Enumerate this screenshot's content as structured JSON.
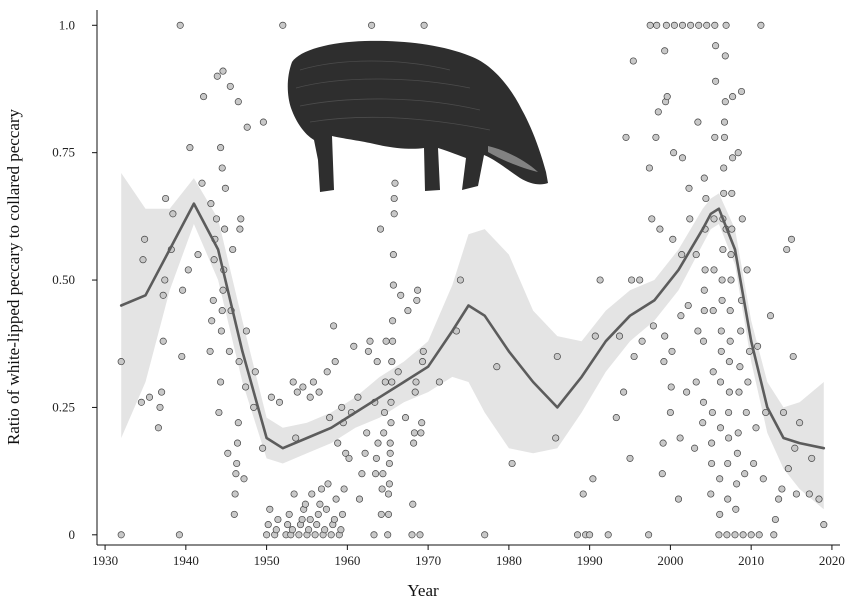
{
  "chart_data": {
    "type": "scatter",
    "title": "",
    "xlabel": "Year",
    "ylabel": "Ratio of white-lipped peccary to collared peccary",
    "xlim": [
      1929,
      2021
    ],
    "ylim": [
      -0.02,
      1.03
    ],
    "x_ticks": [
      1930,
      1940,
      1950,
      1960,
      1970,
      1980,
      1990,
      2000,
      2010,
      2020
    ],
    "y_ticks": [
      0,
      0.25,
      0.5,
      0.75,
      1.0
    ],
    "x_tick_labels": [
      "1930",
      "1940",
      "1950",
      "1960",
      "1970",
      "1980",
      "1990",
      "2000",
      "2010",
      "2020"
    ],
    "y_tick_labels": [
      "0",
      "0.25",
      "0.50",
      "0.75",
      "1.0"
    ],
    "grid": false,
    "legend": "none",
    "colors": {
      "point_fill": "#c8c8c8",
      "point_stroke": "#444444",
      "trend_line": "#5c5c5c",
      "confidence_band": "#e4e4e4",
      "silhouette": "#2e2e2e"
    },
    "illustration": "white-lipped-peccary-silhouette",
    "trend": {
      "x": [
        1932,
        1935,
        1938,
        1941,
        1944,
        1947,
        1950,
        1952,
        1955,
        1958,
        1961,
        1964,
        1967,
        1970,
        1973,
        1975,
        1977,
        1980,
        1983,
        1986,
        1989,
        1992,
        1995,
        1998,
        2001,
        2004,
        2005,
        2006,
        2008,
        2010,
        2012,
        2014,
        2016,
        2019
      ],
      "y": [
        0.45,
        0.47,
        0.56,
        0.65,
        0.56,
        0.36,
        0.19,
        0.17,
        0.19,
        0.21,
        0.24,
        0.27,
        0.3,
        0.33,
        0.4,
        0.45,
        0.43,
        0.36,
        0.3,
        0.25,
        0.31,
        0.38,
        0.43,
        0.46,
        0.52,
        0.6,
        0.63,
        0.64,
        0.56,
        0.38,
        0.25,
        0.19,
        0.18,
        0.17
      ],
      "lower": [
        0.19,
        0.3,
        0.48,
        0.61,
        0.5,
        0.3,
        0.15,
        0.14,
        0.16,
        0.18,
        0.21,
        0.23,
        0.26,
        0.28,
        0.31,
        0.3,
        0.24,
        0.17,
        0.16,
        0.17,
        0.24,
        0.32,
        0.38,
        0.42,
        0.48,
        0.57,
        0.6,
        0.61,
        0.53,
        0.34,
        0.2,
        0.13,
        0.09,
        0.05
      ],
      "upper": [
        0.71,
        0.64,
        0.64,
        0.7,
        0.62,
        0.42,
        0.23,
        0.21,
        0.22,
        0.24,
        0.27,
        0.31,
        0.34,
        0.38,
        0.49,
        0.59,
        0.6,
        0.55,
        0.44,
        0.39,
        0.38,
        0.44,
        0.48,
        0.5,
        0.56,
        0.64,
        0.66,
        0.67,
        0.6,
        0.42,
        0.3,
        0.25,
        0.26,
        0.3
      ]
    },
    "points": [
      [
        1932,
        0
      ],
      [
        1932,
        0.34
      ],
      [
        1934.5,
        0.26
      ],
      [
        1934.7,
        0.54
      ],
      [
        1934.9,
        0.58
      ],
      [
        1935.5,
        0.27
      ],
      [
        1936.6,
        0.21
      ],
      [
        1936.8,
        0.25
      ],
      [
        1937,
        0.28
      ],
      [
        1937.2,
        0.47
      ],
      [
        1937.4,
        0.5
      ],
      [
        1937.5,
        0.66
      ],
      [
        1937.2,
        0.38
      ],
      [
        1938.2,
        0.56
      ],
      [
        1938.4,
        0.63
      ],
      [
        1939.2,
        0
      ],
      [
        1939.3,
        1.0
      ],
      [
        1939.5,
        0.35
      ],
      [
        1939.6,
        0.48
      ],
      [
        1940.3,
        0.52
      ],
      [
        1940.5,
        0.76
      ],
      [
        1941.5,
        0.55
      ],
      [
        1942,
        0.69
      ],
      [
        1942.2,
        0.86
      ],
      [
        1943,
        0.36
      ],
      [
        1943.2,
        0.42
      ],
      [
        1943.4,
        0.46
      ],
      [
        1943.5,
        0.54
      ],
      [
        1943.6,
        0.58
      ],
      [
        1943.8,
        0.62
      ],
      [
        1943.9,
        0.9
      ],
      [
        1943.1,
        0.65
      ],
      [
        1944.1,
        0.24
      ],
      [
        1944.3,
        0.3
      ],
      [
        1944.4,
        0.4
      ],
      [
        1944.5,
        0.44
      ],
      [
        1944.6,
        0.48
      ],
      [
        1944.7,
        0.52
      ],
      [
        1944.8,
        0.6
      ],
      [
        1944.9,
        0.68
      ],
      [
        1944.5,
        0.72
      ],
      [
        1944.3,
        0.76
      ],
      [
        1944.6,
        0.91
      ],
      [
        1945.2,
        0.16
      ],
      [
        1945.4,
        0.36
      ],
      [
        1945.6,
        0.44
      ],
      [
        1945.8,
        0.56
      ],
      [
        1945.5,
        0.88
      ],
      [
        1946,
        0.04
      ],
      [
        1946.1,
        0.08
      ],
      [
        1946.2,
        0.12
      ],
      [
        1946.3,
        0.14
      ],
      [
        1946.4,
        0.18
      ],
      [
        1946.5,
        0.22
      ],
      [
        1946.6,
        0.34
      ],
      [
        1946.7,
        0.6
      ],
      [
        1946.8,
        0.62
      ],
      [
        1946.5,
        0.85
      ],
      [
        1947.2,
        0.11
      ],
      [
        1947.4,
        0.29
      ],
      [
        1947.5,
        0.4
      ],
      [
        1947.6,
        0.8
      ],
      [
        1948.4,
        0.25
      ],
      [
        1948.6,
        0.32
      ],
      [
        1949.5,
        0.17
      ],
      [
        1949.6,
        0.81
      ],
      [
        1950,
        0
      ],
      [
        1950.2,
        0.02
      ],
      [
        1950.4,
        0.05
      ],
      [
        1950.6,
        0.27
      ],
      [
        1951,
        0
      ],
      [
        1951.2,
        0.01
      ],
      [
        1951.4,
        0.03
      ],
      [
        1951.6,
        0.26
      ],
      [
        1952,
        1.0
      ],
      [
        1952.4,
        0
      ],
      [
        1952.6,
        0.02
      ],
      [
        1952.8,
        0.04
      ],
      [
        1953,
        0
      ],
      [
        1953.2,
        0.01
      ],
      [
        1953.4,
        0.08
      ],
      [
        1953.6,
        0.19
      ],
      [
        1953.8,
        0.28
      ],
      [
        1953.3,
        0.3
      ],
      [
        1954,
        0
      ],
      [
        1954.2,
        0.02
      ],
      [
        1954.4,
        0.03
      ],
      [
        1954.6,
        0.05
      ],
      [
        1954.8,
        0.06
      ],
      [
        1954.5,
        0.29
      ],
      [
        1955,
        0
      ],
      [
        1955.2,
        0.01
      ],
      [
        1955.4,
        0.03
      ],
      [
        1955.6,
        0.08
      ],
      [
        1955.8,
        0.3
      ],
      [
        1955.4,
        0.27
      ],
      [
        1956,
        0
      ],
      [
        1956.2,
        0.02
      ],
      [
        1956.4,
        0.04
      ],
      [
        1956.6,
        0.06
      ],
      [
        1956.8,
        0.09
      ],
      [
        1956.5,
        0.28
      ],
      [
        1957,
        0
      ],
      [
        1957.2,
        0.01
      ],
      [
        1957.4,
        0.05
      ],
      [
        1957.6,
        0.1
      ],
      [
        1957.8,
        0.23
      ],
      [
        1957.5,
        0.32
      ],
      [
        1958,
        0
      ],
      [
        1958.2,
        0.02
      ],
      [
        1958.4,
        0.03
      ],
      [
        1958.6,
        0.07
      ],
      [
        1958.8,
        0.18
      ],
      [
        1958.5,
        0.34
      ],
      [
        1958.3,
        0.41
      ],
      [
        1959,
        0
      ],
      [
        1959.2,
        0.01
      ],
      [
        1959.4,
        0.04
      ],
      [
        1959.6,
        0.09
      ],
      [
        1959.8,
        0.16
      ],
      [
        1959.5,
        0.22
      ],
      [
        1959.3,
        0.25
      ],
      [
        1960.2,
        0.15
      ],
      [
        1960.5,
        0.24
      ],
      [
        1960.8,
        0.37
      ],
      [
        1961.5,
        0.07
      ],
      [
        1961.8,
        0.12
      ],
      [
        1961.3,
        0.27
      ],
      [
        1962.2,
        0.16
      ],
      [
        1962.4,
        0.2
      ],
      [
        1962.6,
        0.36
      ],
      [
        1962.8,
        0.38
      ],
      [
        1963,
        1.0
      ],
      [
        1963.3,
        0
      ],
      [
        1963.5,
        0.12
      ],
      [
        1963.6,
        0.15
      ],
      [
        1963.8,
        0.18
      ],
      [
        1963.4,
        0.26
      ],
      [
        1963.7,
        0.34
      ],
      [
        1964,
        0.87
      ],
      [
        1964.1,
        0.6
      ],
      [
        1964.2,
        0.04
      ],
      [
        1964.3,
        0.09
      ],
      [
        1964.4,
        0.12
      ],
      [
        1964.5,
        0.2
      ],
      [
        1964.6,
        0.24
      ],
      [
        1964.7,
        0.3
      ],
      [
        1964.8,
        0.38
      ],
      [
        1965,
        0
      ],
      [
        1965.1,
        0.04
      ],
      [
        1965.1,
        0.08
      ],
      [
        1965.2,
        0.1
      ],
      [
        1965.2,
        0.14
      ],
      [
        1965.3,
        0.16
      ],
      [
        1965.3,
        0.18
      ],
      [
        1965.4,
        0.22
      ],
      [
        1965.4,
        0.26
      ],
      [
        1965.5,
        0.3
      ],
      [
        1965.5,
        0.34
      ],
      [
        1965.6,
        0.38
      ],
      [
        1965.6,
        0.42
      ],
      [
        1965.7,
        0.49
      ],
      [
        1965.7,
        0.55
      ],
      [
        1965.8,
        0.63
      ],
      [
        1965.8,
        0.66
      ],
      [
        1965.9,
        0.69
      ],
      [
        1966.3,
        0.32
      ],
      [
        1966.6,
        0.47
      ],
      [
        1967.2,
        0.23
      ],
      [
        1967.5,
        0.44
      ],
      [
        1968,
        0
      ],
      [
        1968.1,
        0.06
      ],
      [
        1968.2,
        0.18
      ],
      [
        1968.3,
        0.2
      ],
      [
        1968.4,
        0.28
      ],
      [
        1968.5,
        0.3
      ],
      [
        1968.6,
        0.46
      ],
      [
        1968.7,
        0.48
      ],
      [
        1969,
        0
      ],
      [
        1969.1,
        0.2
      ],
      [
        1969.2,
        0.22
      ],
      [
        1969.3,
        0.34
      ],
      [
        1969.4,
        0.36
      ],
      [
        1969.5,
        1.0
      ],
      [
        1971.4,
        0.3
      ],
      [
        1973.5,
        0.4
      ],
      [
        1974,
        0.5
      ],
      [
        1977,
        0
      ],
      [
        1978.5,
        0.33
      ],
      [
        1980.4,
        0.14
      ],
      [
        1985.8,
        0.19
      ],
      [
        1986,
        0.35
      ],
      [
        1988.5,
        0
      ],
      [
        1989.2,
        0.08
      ],
      [
        1989.5,
        0
      ],
      [
        1990,
        0
      ],
      [
        1990.4,
        0.11
      ],
      [
        1990.7,
        0.39
      ],
      [
        1991.3,
        0.5
      ],
      [
        1992.3,
        0
      ],
      [
        1993.3,
        0.23
      ],
      [
        1993.7,
        0.39
      ],
      [
        1994.2,
        0.28
      ],
      [
        1994.5,
        0.78
      ],
      [
        1995,
        0.15
      ],
      [
        1995.2,
        0.5
      ],
      [
        1995.4,
        0.93
      ],
      [
        1995.5,
        0.35
      ],
      [
        1996.2,
        0.5
      ],
      [
        1996.5,
        0.38
      ],
      [
        1997.3,
        0
      ],
      [
        1997.4,
        0.72
      ],
      [
        1997.5,
        1.0
      ],
      [
        1997.7,
        0.62
      ],
      [
        1997.9,
        0.41
      ],
      [
        1998.2,
        0.78
      ],
      [
        1998.3,
        1.0
      ],
      [
        1998.5,
        0.83
      ],
      [
        1998.7,
        0.6
      ],
      [
        1999,
        0.12
      ],
      [
        1999.1,
        0.18
      ],
      [
        1999.2,
        0.34
      ],
      [
        1999.3,
        0.39
      ],
      [
        1999.4,
        0.85
      ],
      [
        1999.5,
        1.0
      ],
      [
        1999.3,
        0.95
      ],
      [
        1999.6,
        0.86
      ],
      [
        2000,
        0.24
      ],
      [
        2000.1,
        0.29
      ],
      [
        2000.2,
        0.36
      ],
      [
        2000.3,
        0.58
      ],
      [
        2000.4,
        0.75
      ],
      [
        2000.5,
        1.0
      ],
      [
        2001,
        0.07
      ],
      [
        2001.2,
        0.19
      ],
      [
        2001.3,
        0.43
      ],
      [
        2001.4,
        0.55
      ],
      [
        2001.5,
        1.0
      ],
      [
        2001.5,
        0.74
      ],
      [
        2002,
        0.28
      ],
      [
        2002.2,
        0.45
      ],
      [
        2002.4,
        0.62
      ],
      [
        2002.5,
        1.0
      ],
      [
        2002.3,
        0.68
      ],
      [
        2003,
        0.17
      ],
      [
        2003.2,
        0.3
      ],
      [
        2003.4,
        0.4
      ],
      [
        2003.5,
        1.0
      ],
      [
        2003.4,
        0.81
      ],
      [
        2003.2,
        0.55
      ],
      [
        2004,
        0.22
      ],
      [
        2004.1,
        0.26
      ],
      [
        2004.1,
        0.38
      ],
      [
        2004.2,
        0.44
      ],
      [
        2004.2,
        0.48
      ],
      [
        2004.3,
        0.52
      ],
      [
        2004.3,
        0.6
      ],
      [
        2004.4,
        0.66
      ],
      [
        2004.5,
        1.0
      ],
      [
        2004.2,
        0.7
      ],
      [
        2005,
        0.08
      ],
      [
        2005.1,
        0.14
      ],
      [
        2005.1,
        0.18
      ],
      [
        2005.2,
        0.24
      ],
      [
        2005.3,
        0.32
      ],
      [
        2005.3,
        0.44
      ],
      [
        2005.4,
        0.52
      ],
      [
        2005.4,
        0.62
      ],
      [
        2005.5,
        1.0
      ],
      [
        2005.5,
        0.78
      ],
      [
        2005.6,
        0.96
      ],
      [
        2005.6,
        0.89
      ],
      [
        2006,
        0
      ],
      [
        2006.1,
        0.04
      ],
      [
        2006.1,
        0.11
      ],
      [
        2006.2,
        0.21
      ],
      [
        2006.2,
        0.3
      ],
      [
        2006.3,
        0.36
      ],
      [
        2006.3,
        0.4
      ],
      [
        2006.4,
        0.46
      ],
      [
        2006.4,
        0.5
      ],
      [
        2006.5,
        0.56
      ],
      [
        2006.5,
        0.62
      ],
      [
        2006.6,
        0.67
      ],
      [
        2006.6,
        0.72
      ],
      [
        2006.7,
        0.78
      ],
      [
        2006.7,
        0.81
      ],
      [
        2006.8,
        0.85
      ],
      [
        2006.8,
        0.94
      ],
      [
        2006.9,
        1.0
      ],
      [
        2006.9,
        0.6
      ],
      [
        2007,
        0
      ],
      [
        2007.1,
        0.07
      ],
      [
        2007.1,
        0.14
      ],
      [
        2007.2,
        0.19
      ],
      [
        2007.2,
        0.24
      ],
      [
        2007.3,
        0.28
      ],
      [
        2007.3,
        0.34
      ],
      [
        2007.4,
        0.38
      ],
      [
        2007.4,
        0.44
      ],
      [
        2007.5,
        0.5
      ],
      [
        2007.5,
        0.55
      ],
      [
        2007.6,
        0.6
      ],
      [
        2007.6,
        0.67
      ],
      [
        2007.7,
        0.74
      ],
      [
        2007.7,
        0.86
      ],
      [
        2008,
        0
      ],
      [
        2008.1,
        0.05
      ],
      [
        2008.2,
        0.1
      ],
      [
        2008.3,
        0.16
      ],
      [
        2008.4,
        0.2
      ],
      [
        2008.5,
        0.28
      ],
      [
        2008.6,
        0.33
      ],
      [
        2008.7,
        0.4
      ],
      [
        2008.8,
        0.46
      ],
      [
        2008.9,
        0.62
      ],
      [
        2008.8,
        0.87
      ],
      [
        2008.4,
        0.75
      ],
      [
        2009,
        0
      ],
      [
        2009.2,
        0.12
      ],
      [
        2009.4,
        0.24
      ],
      [
        2009.6,
        0.3
      ],
      [
        2009.8,
        0.36
      ],
      [
        2009.5,
        0.52
      ],
      [
        2010,
        0
      ],
      [
        2010.3,
        0.14
      ],
      [
        2010.6,
        0.21
      ],
      [
        2010.8,
        0.37
      ],
      [
        2011,
        0
      ],
      [
        2011.2,
        1.0
      ],
      [
        2011.5,
        0.11
      ],
      [
        2011.8,
        0.24
      ],
      [
        2012.4,
        0.43
      ],
      [
        2012.8,
        0
      ],
      [
        2013,
        0.03
      ],
      [
        2013.4,
        0.07
      ],
      [
        2013.8,
        0.09
      ],
      [
        2014,
        0.24
      ],
      [
        2014.4,
        0.56
      ],
      [
        2014.6,
        0.13
      ],
      [
        2015,
        0.58
      ],
      [
        2015.2,
        0.35
      ],
      [
        2015.4,
        0.17
      ],
      [
        2015.6,
        0.08
      ],
      [
        2016,
        0.22
      ],
      [
        2017.2,
        0.08
      ],
      [
        2017.5,
        0.15
      ],
      [
        2018.4,
        0.07
      ],
      [
        2019,
        0.02
      ]
    ]
  }
}
